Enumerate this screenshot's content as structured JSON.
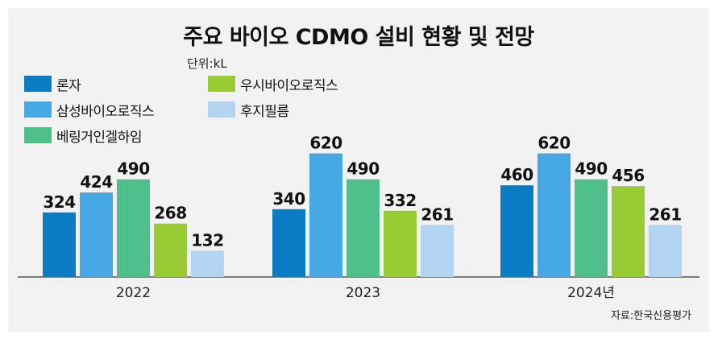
{
  "chart_data": {
    "type": "bar",
    "title": "주요 바이오 CDMO 설비 현황 및 전망",
    "unit_label": "단위:kL",
    "categories": [
      "2022",
      "2023",
      "2024년"
    ],
    "series": [
      {
        "name": "론자",
        "color": "#0a7cc4",
        "values": [
          324,
          340,
          460
        ]
      },
      {
        "name": "삼성바이오로직스",
        "color": "#45a8e4",
        "values": [
          424,
          620,
          620
        ]
      },
      {
        "name": "베링거인겔하임",
        "color": "#4fbf8c",
        "values": [
          490,
          490,
          490
        ]
      },
      {
        "name": "우시바이오로직스",
        "color": "#99cc33",
        "values": [
          268,
          332,
          456
        ]
      },
      {
        "name": "후지필름",
        "color": "#b3d4f0",
        "values": [
          132,
          261,
          261
        ]
      }
    ],
    "ylim": [
      0,
      650
    ],
    "grid": false,
    "legend_position": "top-left",
    "source": "자료:한국신용평가"
  }
}
